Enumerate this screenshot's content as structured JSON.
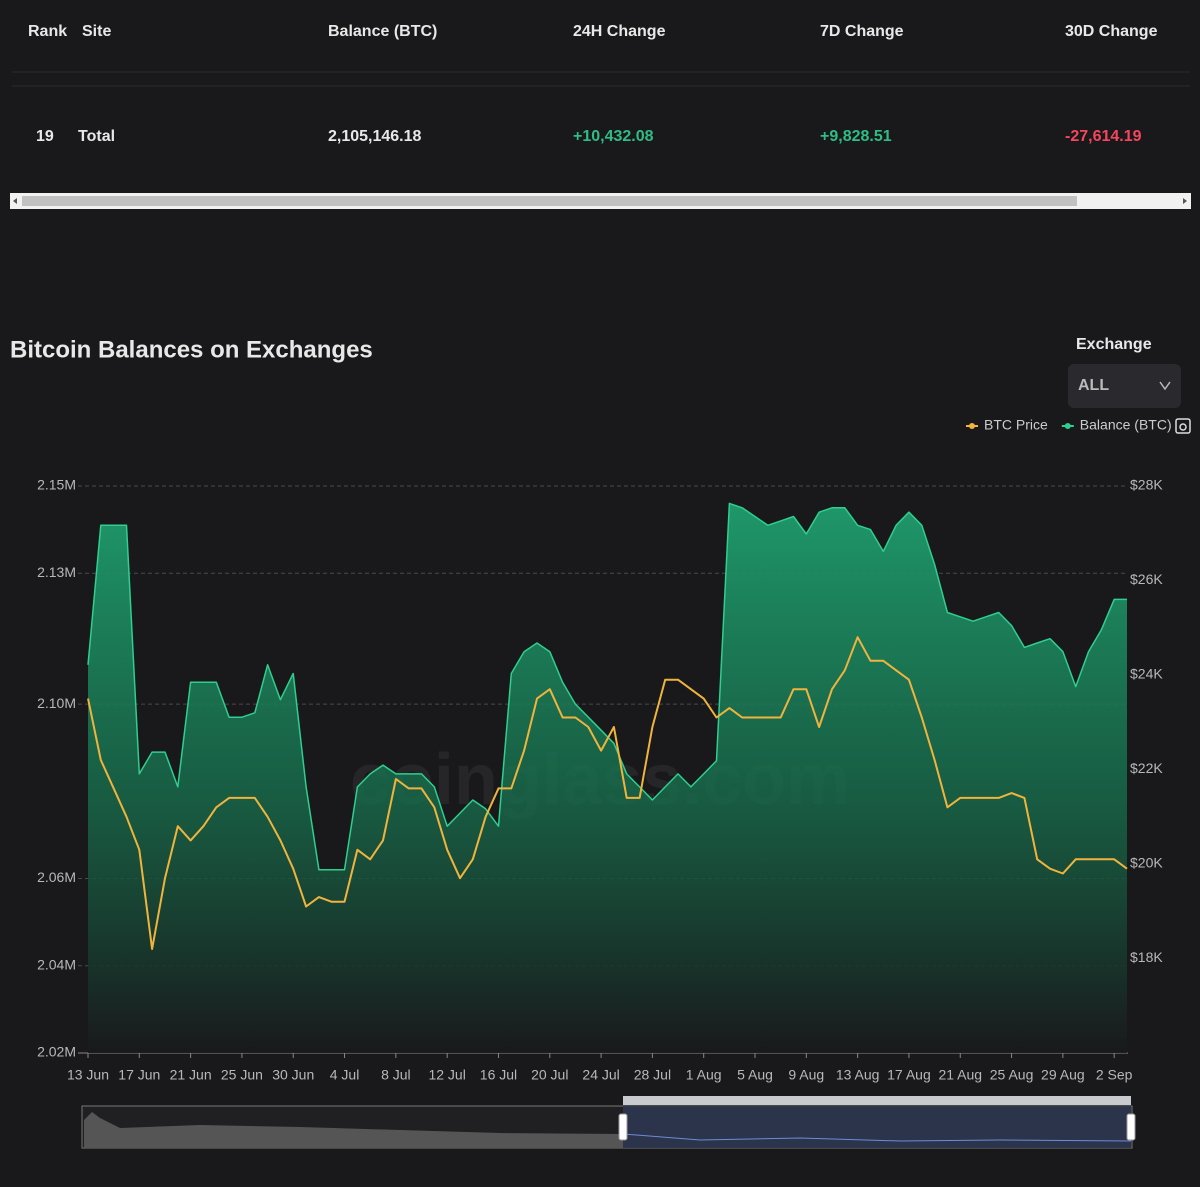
{
  "table": {
    "columns": [
      "Rank",
      "Site",
      "Balance (BTC)",
      "24H Change",
      "7D Change",
      "30D Change"
    ],
    "rows": [
      [
        "19",
        "Total",
        "2,105,146.18",
        "+10,432.08",
        "+9,828.51",
        "-27,614.19"
      ]
    ]
  },
  "filter": {
    "label": "Exchange",
    "value": "ALL"
  },
  "watermark": "coinglass.com",
  "chart_data": {
    "type": "line",
    "title": "Bitcoin Balances on Exchanges",
    "categories": [
      "13 Jun",
      null,
      null,
      null,
      "17 Jun",
      null,
      null,
      null,
      "21 Jun",
      null,
      null,
      null,
      "25 Jun",
      null,
      null,
      null,
      "30 Jun",
      null,
      null,
      null,
      "4 Jul",
      null,
      null,
      null,
      "8 Jul",
      null,
      null,
      null,
      "12 Jul",
      null,
      null,
      null,
      "16 Jul",
      null,
      null,
      null,
      "20 Jul",
      null,
      null,
      null,
      "24 Jul",
      null,
      null,
      null,
      "28 Jul",
      null,
      null,
      null,
      "1 Aug",
      null,
      null,
      null,
      "5 Aug",
      null,
      null,
      null,
      "9 Aug",
      null,
      null,
      null,
      "13 Aug",
      null,
      null,
      null,
      "17 Aug",
      null,
      null,
      null,
      "21 Aug",
      null,
      null,
      null,
      "25 Aug",
      null,
      null,
      null,
      "29 Aug",
      null,
      null,
      null,
      "2 Sep",
      null
    ],
    "series": [
      {
        "name": "BTC Price",
        "type": "line",
        "axis": "y2",
        "color": "#f0b43c",
        "values": [
          23500,
          22200,
          21600,
          21000,
          20300,
          18200,
          19700,
          20800,
          20500,
          20800,
          21200,
          21400,
          21400,
          21400,
          21000,
          20500,
          19900,
          19100,
          19300,
          19200,
          19200,
          20300,
          20100,
          20500,
          21800,
          21600,
          21600,
          21200,
          20300,
          19700,
          20100,
          21000,
          21600,
          21600,
          22400,
          23500,
          23700,
          23100,
          23100,
          22900,
          22400,
          22900,
          21400,
          21400,
          22900,
          23900,
          23900,
          23700,
          23500,
          23100,
          23300,
          23100,
          23100,
          23100,
          23100,
          23700,
          23700,
          22900,
          23700,
          24100,
          24800,
          24300,
          24300,
          24100,
          23900,
          23100,
          22200,
          21200,
          21400,
          21400,
          21400,
          21400,
          21500,
          21400,
          20100,
          19900,
          19800,
          20100,
          20100,
          20100,
          20100,
          19900
        ]
      },
      {
        "name": "Balance (BTC)",
        "type": "area",
        "color": "#2ecf8f",
        "values": [
          2109000,
          2141000,
          2141000,
          2141000,
          2084000,
          2089000,
          2089000,
          2081000,
          2105000,
          2105000,
          2105000,
          2097000,
          2097000,
          2098000,
          2109000,
          2101000,
          2107000,
          2081000,
          2062000,
          2062000,
          2062000,
          2081000,
          2084000,
          2086000,
          2084000,
          2084000,
          2084000,
          2081000,
          2072000,
          2075000,
          2078000,
          2076000,
          2072000,
          2107000,
          2112000,
          2114000,
          2112000,
          2105000,
          2100000,
          2097000,
          2094000,
          2091000,
          2084000,
          2081000,
          2078000,
          2081000,
          2084000,
          2081000,
          2084000,
          2087000,
          2146000,
          2145000,
          2143000,
          2141000,
          2142000,
          2143000,
          2139000,
          2144000,
          2145000,
          2145000,
          2141000,
          2140000,
          2135000,
          2141000,
          2144000,
          2141000,
          2132000,
          2121000,
          2120000,
          2119000,
          2120000,
          2121000,
          2118000,
          2113000,
          2114000,
          2115000,
          2112000,
          2104000,
          2112000,
          2117000,
          2124000,
          2124000
        ]
      }
    ],
    "ylim": [
      2020000,
      2150000
    ],
    "yticks": [
      {
        "value": 2150000,
        "label": "2.15M"
      },
      {
        "value": 2130000,
        "label": "2.13M"
      },
      {
        "value": 2100000,
        "label": "2.10M"
      },
      {
        "value": 2060000,
        "label": "2.06M"
      },
      {
        "value": 2040000,
        "label": "2.04M"
      },
      {
        "value": 2020000,
        "label": "2.02M"
      }
    ],
    "y2lim": [
      16000,
      28000
    ],
    "y2ticks": [
      {
        "value": 28000,
        "label": "$28K"
      },
      {
        "value": 26000,
        "label": "$26K"
      },
      {
        "value": 24000,
        "label": "$24K"
      },
      {
        "value": 22000,
        "label": "$22K"
      },
      {
        "value": 20000,
        "label": "$20K"
      },
      {
        "value": 18000,
        "label": "$18K"
      }
    ],
    "grid": true,
    "legend": "top-right"
  }
}
